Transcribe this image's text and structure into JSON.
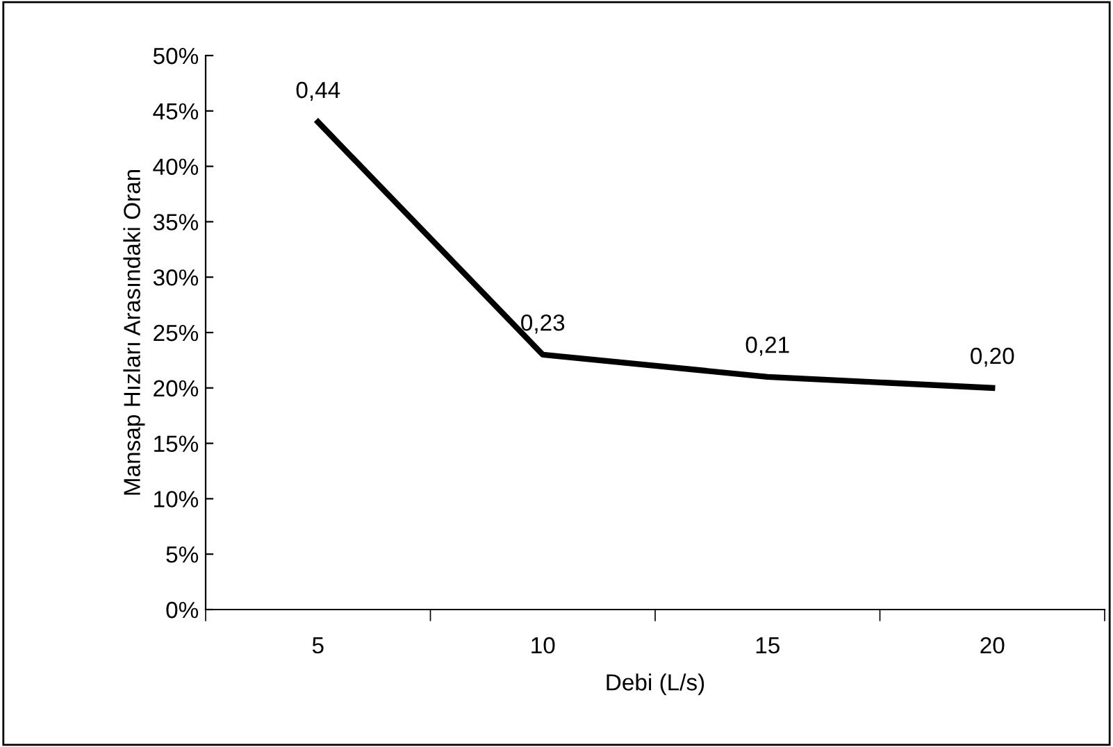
{
  "chart_data": {
    "type": "line",
    "xlabel": "Debi (L/s)",
    "ylabel": "Mansap Hızları Arasındaki Oran",
    "categories": [
      "5",
      "10",
      "15",
      "20"
    ],
    "series": [
      {
        "color": "#000000",
        "values": [
          0.44,
          0.23,
          0.21,
          0.2
        ],
        "value_labels": [
          "0,44",
          "0,23",
          "0,21",
          "0,20"
        ]
      }
    ],
    "ylim": [
      0,
      0.5
    ],
    "yticks": [
      {
        "value": 0,
        "label": "0%"
      },
      {
        "value": 0.05,
        "label": "5%"
      },
      {
        "value": 0.1,
        "label": "10%"
      },
      {
        "value": 0.15,
        "label": "15%"
      },
      {
        "value": 0.2,
        "label": "20%"
      },
      {
        "value": 0.25,
        "label": "25%"
      },
      {
        "value": 0.3,
        "label": "30%"
      },
      {
        "value": 0.35,
        "label": "35%"
      },
      {
        "value": 0.4,
        "label": "40%"
      },
      {
        "value": 0.45,
        "label": "45%"
      },
      {
        "value": 0.5,
        "label": "50%"
      }
    ],
    "grid": false,
    "legend": false,
    "marker": "none",
    "line_style": "solid"
  }
}
